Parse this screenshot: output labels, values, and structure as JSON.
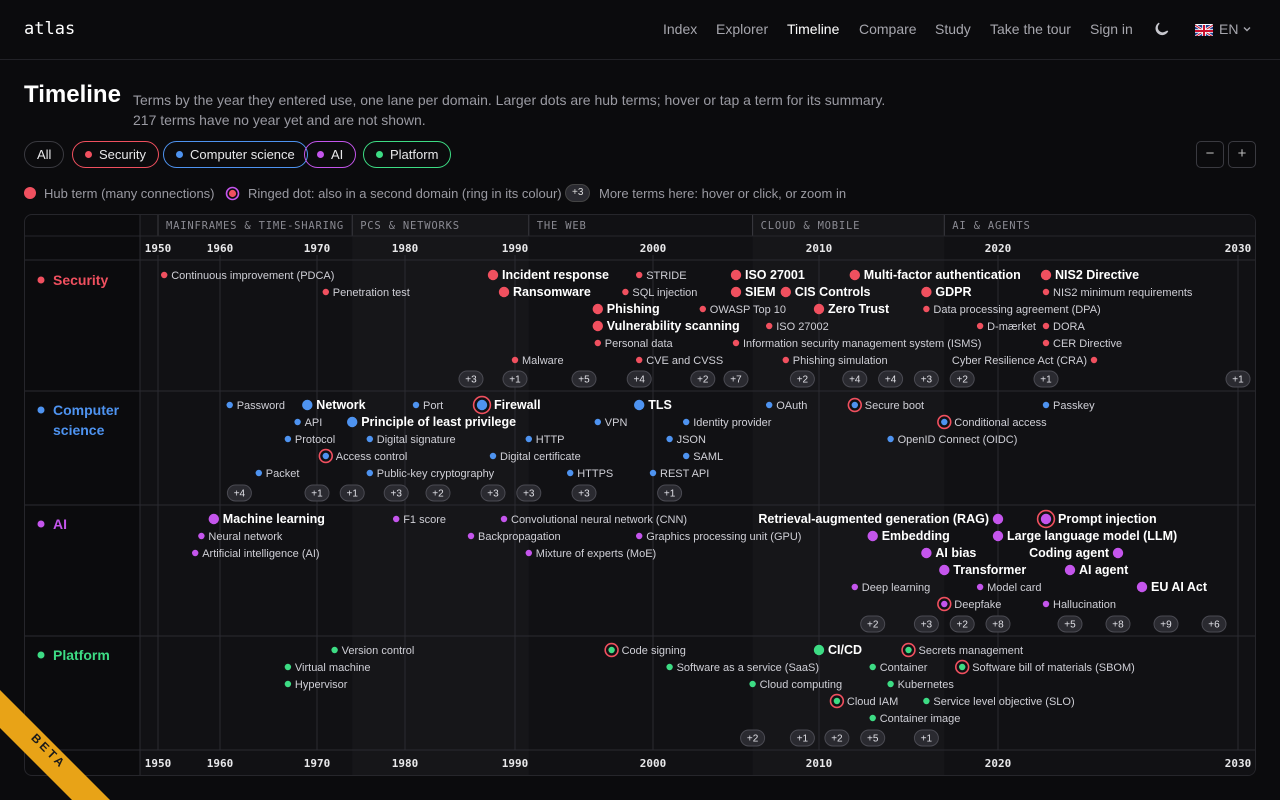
{
  "header": {
    "logo": "atlas",
    "nav": [
      "Index",
      "Explorer",
      "Timeline",
      "Compare",
      "Study",
      "Take the tour",
      "Sign in"
    ],
    "active_nav": "Timeline",
    "theme_icon": "moon-icon",
    "language": "EN"
  },
  "page": {
    "title": "Timeline",
    "subtitle_line1": "Terms by the year they entered use, one lane per domain. Larger dots are hub terms; hover or tap a term for its summary.",
    "subtitle_line2": "217 terms have no year yet and are not shown."
  },
  "filters": [
    {
      "label": "All",
      "color": "#ffffff"
    },
    {
      "label": "Security",
      "color": "#f0505f"
    },
    {
      "label": "Computer science",
      "color": "#4e93f0"
    },
    {
      "label": "AI",
      "color": "#c455ec"
    },
    {
      "label": "Platform",
      "color": "#3ddc84"
    }
  ],
  "zoom": {
    "out_label": "−",
    "in_label": "+"
  },
  "legend": {
    "hub": "Hub term (many connections)",
    "ringed": "Ringed dot: also in a second domain (ring in its colour)",
    "badge": "+3",
    "more": "More terms here: hover or click, or zoom in"
  },
  "timeline": {
    "year_min": 1946,
    "year_max": 2032,
    "eras": [
      {
        "label": "MAINFRAMES & TIME-SHARING",
        "from": 1950,
        "to": 1974
      },
      {
        "label": "PCS & NETWORKS",
        "from": 1974,
        "to": 1991
      },
      {
        "label": "THE WEB",
        "from": 1991,
        "to": 2006
      },
      {
        "label": "CLOUD & MOBILE",
        "from": 2006,
        "to": 2017
      },
      {
        "label": "AI & AGENTS",
        "from": 2017,
        "to": 2030
      }
    ],
    "ticks": [
      1950,
      1960,
      1970,
      1980,
      1990,
      2000,
      2010,
      2020,
      2030
    ],
    "lanes": [
      {
        "label": "Security",
        "color": "#f0505f",
        "terms": [
          {
            "label": "Continuous improvement (PDCA)",
            "year": 1951,
            "row": 0
          },
          {
            "label": "Penetration test",
            "year": 1971,
            "row": 1
          },
          {
            "label": "Incident response",
            "year": 1988,
            "row": 0,
            "hub": true
          },
          {
            "label": "Ransomware",
            "year": 1989,
            "row": 1,
            "hub": true
          },
          {
            "label": "Phishing",
            "year": 1996,
            "row": 2,
            "hub": true
          },
          {
            "label": "Vulnerability scanning",
            "year": 1996,
            "row": 3,
            "hub": true
          },
          {
            "label": "Personal data",
            "year": 1996,
            "row": 4
          },
          {
            "label": "Malware",
            "year": 1990,
            "row": 5
          },
          {
            "label": "STRIDE",
            "year": 1999,
            "row": 0
          },
          {
            "label": "SQL injection",
            "year": 1998,
            "row": 1
          },
          {
            "label": "CVE and CVSS",
            "year": 1999,
            "row": 5
          },
          {
            "label": "OWASP Top 10",
            "year": 2003,
            "row": 2
          },
          {
            "label": "ISO 27001",
            "year": 2005,
            "row": 0,
            "hub": true
          },
          {
            "label": "SIEM",
            "year": 2005,
            "row": 1,
            "hub": true
          },
          {
            "label": "Information security management system (ISMS)",
            "year": 2005,
            "row": 4
          },
          {
            "label": "ISO 27002",
            "year": 2007,
            "row": 3
          },
          {
            "label": "CIS Controls",
            "year": 2008,
            "row": 1,
            "hub": true
          },
          {
            "label": "Phishing simulation",
            "year": 2008,
            "row": 5
          },
          {
            "label": "Zero Trust",
            "year": 2010,
            "row": 2,
            "hub": true
          },
          {
            "label": "Multi-factor authentication",
            "year": 2012,
            "row": 0,
            "hub": true
          },
          {
            "label": "GDPR",
            "year": 2016,
            "row": 1,
            "hub": true
          },
          {
            "label": "Data processing agreement (DPA)",
            "year": 2016,
            "row": 2
          },
          {
            "label": "D-mærket",
            "year": 2019,
            "row": 3
          },
          {
            "label": "NIS2 Directive",
            "year": 2022,
            "row": 0,
            "hub": true
          },
          {
            "label": "NIS2 minimum requirements",
            "year": 2022,
            "row": 1
          },
          {
            "label": "DORA",
            "year": 2022,
            "row": 3
          },
          {
            "label": "CER Directive",
            "year": 2022,
            "row": 4
          },
          {
            "label": "Cyber Resilience Act (CRA)",
            "year": 2024,
            "row": 5,
            "left": true
          }
        ],
        "badges": [
          {
            "label": "+3",
            "year": 1986
          },
          {
            "label": "+1",
            "year": 1990
          },
          {
            "label": "+5",
            "year": 1995
          },
          {
            "label": "+4",
            "year": 1999
          },
          {
            "label": "+2",
            "year": 2003
          },
          {
            "label": "+7",
            "year": 2005
          },
          {
            "label": "+2",
            "year": 2009
          },
          {
            "label": "+4",
            "year": 2012
          },
          {
            "label": "+4",
            "year": 2014
          },
          {
            "label": "+3",
            "year": 2016
          },
          {
            "label": "+2",
            "year": 2018
          },
          {
            "label": "+1",
            "year": 2022
          },
          {
            "label": "+1",
            "year": 2030
          }
        ]
      },
      {
        "label": "Computer science",
        "color": "#4e93f0",
        "terms": [
          {
            "label": "Password",
            "year": 1961,
            "row": 0
          },
          {
            "label": "Network",
            "year": 1969,
            "row": 0,
            "hub": true
          },
          {
            "label": "API",
            "year": 1968,
            "row": 1
          },
          {
            "label": "Principle of least privilege",
            "year": 1974,
            "row": 1,
            "hub": true
          },
          {
            "label": "Protocol",
            "year": 1967,
            "row": 2
          },
          {
            "label": "Access control",
            "year": 1971,
            "row": 3,
            "ring": "#f0505f"
          },
          {
            "label": "Packet",
            "year": 1964,
            "row": 4
          },
          {
            "label": "Port",
            "year": 1981,
            "row": 0
          },
          {
            "label": "Digital signature",
            "year": 1976,
            "row": 2
          },
          {
            "label": "Public-key cryptography",
            "year": 1976,
            "row": 4
          },
          {
            "label": "Firewall",
            "year": 1987,
            "row": 0,
            "hub": true,
            "ring": "#f0505f"
          },
          {
            "label": "HTTP",
            "year": 1991,
            "row": 2
          },
          {
            "label": "Digital certificate",
            "year": 1988,
            "row": 3
          },
          {
            "label": "HTTPS",
            "year": 1994,
            "row": 4
          },
          {
            "label": "TLS",
            "year": 1999,
            "row": 0,
            "hub": true
          },
          {
            "label": "VPN",
            "year": 1996,
            "row": 1
          },
          {
            "label": "JSON",
            "year": 2001,
            "row": 2
          },
          {
            "label": "SAML",
            "year": 2002,
            "row": 3
          },
          {
            "label": "REST API",
            "year": 2000,
            "row": 4
          },
          {
            "label": "Identity provider",
            "year": 2002,
            "row": 1
          },
          {
            "label": "OAuth",
            "year": 2007,
            "row": 0
          },
          {
            "label": "Secure boot",
            "year": 2012,
            "row": 0,
            "ring": "#f0505f"
          },
          {
            "label": "Conditional access",
            "year": 2017,
            "row": 1,
            "ring": "#f0505f"
          },
          {
            "label": "OpenID Connect (OIDC)",
            "year": 2014,
            "row": 2
          },
          {
            "label": "Passkey",
            "year": 2022,
            "row": 0
          }
        ],
        "badges": [
          {
            "label": "+4",
            "year": 1962
          },
          {
            "label": "+1",
            "year": 1970
          },
          {
            "label": "+1",
            "year": 1974
          },
          {
            "label": "+3",
            "year": 1979
          },
          {
            "label": "+2",
            "year": 1983
          },
          {
            "label": "+3",
            "year": 1988
          },
          {
            "label": "+3",
            "year": 1991
          },
          {
            "label": "+3",
            "year": 1995
          },
          {
            "label": "+1",
            "year": 2001
          }
        ]
      },
      {
        "label": "AI",
        "color": "#c455ec",
        "terms": [
          {
            "label": "Machine learning",
            "year": 1959,
            "row": 0,
            "hub": true
          },
          {
            "label": "Neural network",
            "year": 1957,
            "row": 1
          },
          {
            "label": "Artificial intelligence (AI)",
            "year": 1956,
            "row": 2
          },
          {
            "label": "F1 score",
            "year": 1979,
            "row": 0
          },
          {
            "label": "Backpropagation",
            "year": 1986,
            "row": 1
          },
          {
            "label": "Convolutional neural network (CNN)",
            "year": 1989,
            "row": 0
          },
          {
            "label": "Mixture of experts (MoE)",
            "year": 1991,
            "row": 2
          },
          {
            "label": "Graphics processing unit (GPU)",
            "year": 1999,
            "row": 1
          },
          {
            "label": "Retrieval-augmented generation (RAG)",
            "year": 2020,
            "row": 0,
            "hub": true,
            "left": true
          },
          {
            "label": "Embedding",
            "year": 2013,
            "row": 1,
            "hub": true
          },
          {
            "label": "AI bias",
            "year": 2016,
            "row": 2,
            "hub": true
          },
          {
            "label": "Transformer",
            "year": 2017,
            "row": 3,
            "hub": true
          },
          {
            "label": "Deep learning",
            "year": 2012,
            "row": 4
          },
          {
            "label": "Deepfake",
            "year": 2017,
            "row": 5,
            "ring": "#f0505f"
          },
          {
            "label": "Model card",
            "year": 2019,
            "row": 4
          },
          {
            "label": "Prompt injection",
            "year": 2022,
            "row": 0,
            "hub": true,
            "ring": "#f0505f"
          },
          {
            "label": "Large language model (LLM)",
            "year": 2020,
            "row": 1,
            "hub": true
          },
          {
            "label": "Coding agent",
            "year": 2025,
            "row": 2,
            "hub": true,
            "left": true
          },
          {
            "label": "AI agent",
            "year": 2023,
            "row": 3,
            "hub": true
          },
          {
            "label": "EU AI Act",
            "year": 2026,
            "row": 4,
            "hub": true
          },
          {
            "label": "Hallucination",
            "year": 2022,
            "row": 5
          }
        ],
        "badges": [
          {
            "label": "+2",
            "year": 2013
          },
          {
            "label": "+3",
            "year": 2016
          },
          {
            "label": "+2",
            "year": 2018
          },
          {
            "label": "+8",
            "year": 2020
          },
          {
            "label": "+5",
            "year": 2023
          },
          {
            "label": "+8",
            "year": 2025
          },
          {
            "label": "+9",
            "year": 2027
          },
          {
            "label": "+6",
            "year": 2029
          }
        ]
      },
      {
        "label": "Platform",
        "color": "#3ddc84",
        "terms": [
          {
            "label": "Version control",
            "year": 1972,
            "row": 0
          },
          {
            "label": "Virtual machine",
            "year": 1967,
            "row": 1
          },
          {
            "label": "Hypervisor",
            "year": 1967,
            "row": 2
          },
          {
            "label": "Code signing",
            "year": 1997,
            "row": 0,
            "ring": "#f0505f"
          },
          {
            "label": "Software as a service (SaaS)",
            "year": 2001,
            "row": 1
          },
          {
            "label": "Cloud computing",
            "year": 2006,
            "row": 2
          },
          {
            "label": "CI/CD",
            "year": 2010,
            "row": 0,
            "hub": true
          },
          {
            "label": "Cloud IAM",
            "year": 2011,
            "row": 3,
            "ring": "#f0505f"
          },
          {
            "label": "Container",
            "year": 2013,
            "row": 1
          },
          {
            "label": "Kubernetes",
            "year": 2014,
            "row": 2
          },
          {
            "label": "Container image",
            "year": 2013,
            "row": 4
          },
          {
            "label": "Secrets management",
            "year": 2015,
            "row": 0,
            "ring": "#f0505f"
          },
          {
            "label": "Software bill of materials (SBOM)",
            "year": 2018,
            "row": 1,
            "ring": "#f0505f"
          },
          {
            "label": "Service level objective (SLO)",
            "year": 2016,
            "row": 3
          }
        ],
        "badges": [
          {
            "label": "+2",
            "year": 2006
          },
          {
            "label": "+1",
            "year": 2009
          },
          {
            "label": "+2",
            "year": 2011
          },
          {
            "label": "+5",
            "year": 2013
          },
          {
            "label": "+1",
            "year": 2016
          }
        ]
      }
    ]
  },
  "beta_label": "BETA"
}
